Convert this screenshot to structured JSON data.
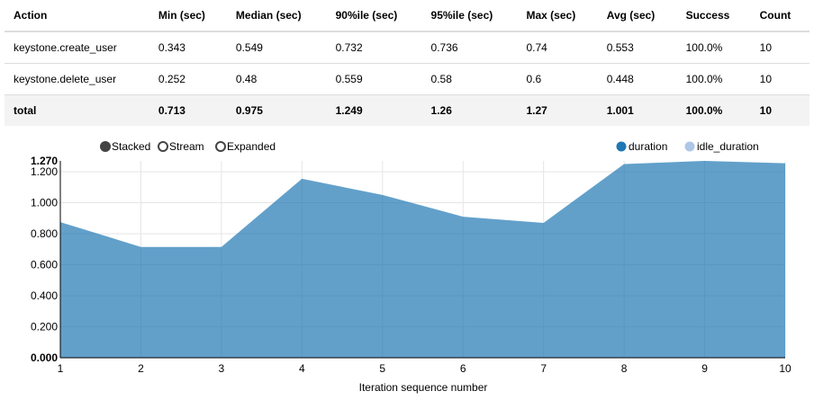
{
  "table": {
    "headers": [
      "Action",
      "Min (sec)",
      "Median (sec)",
      "90%ile (sec)",
      "95%ile (sec)",
      "Max (sec)",
      "Avg (sec)",
      "Success",
      "Count"
    ],
    "rows": [
      [
        "keystone.create_user",
        "0.343",
        "0.549",
        "0.732",
        "0.736",
        "0.74",
        "0.553",
        "100.0%",
        "10"
      ],
      [
        "keystone.delete_user",
        "0.252",
        "0.48",
        "0.559",
        "0.58",
        "0.6",
        "0.448",
        "100.0%",
        "10"
      ],
      [
        "total",
        "0.713",
        "0.975",
        "1.249",
        "1.26",
        "1.27",
        "1.001",
        "100.0%",
        "10"
      ]
    ]
  },
  "controls": {
    "modes": [
      {
        "label": "Stacked",
        "selected": true
      },
      {
        "label": "Stream",
        "selected": false
      },
      {
        "label": "Expanded",
        "selected": false
      }
    ]
  },
  "chart_data": {
    "type": "area",
    "xlabel": "Iteration sequence number",
    "x": [
      1,
      2,
      3,
      4,
      5,
      6,
      7,
      8,
      9,
      10
    ],
    "ylim": [
      0,
      1.27
    ],
    "yticks": [
      "0.000",
      "0.200",
      "0.400",
      "0.600",
      "0.800",
      "1.000",
      "1.200",
      "1.270"
    ],
    "grid": true,
    "legend_placement": "top-right",
    "series": [
      {
        "name": "duration",
        "color": "#1f77b4",
        "values": [
          0.875,
          0.715,
          0.715,
          1.155,
          1.05,
          0.91,
          0.87,
          1.25,
          1.27,
          1.255
        ]
      },
      {
        "name": "idle_duration",
        "color": "#aec7e8",
        "values": [
          0,
          0,
          0,
          0,
          0,
          0,
          0,
          0,
          0,
          0
        ]
      }
    ]
  }
}
